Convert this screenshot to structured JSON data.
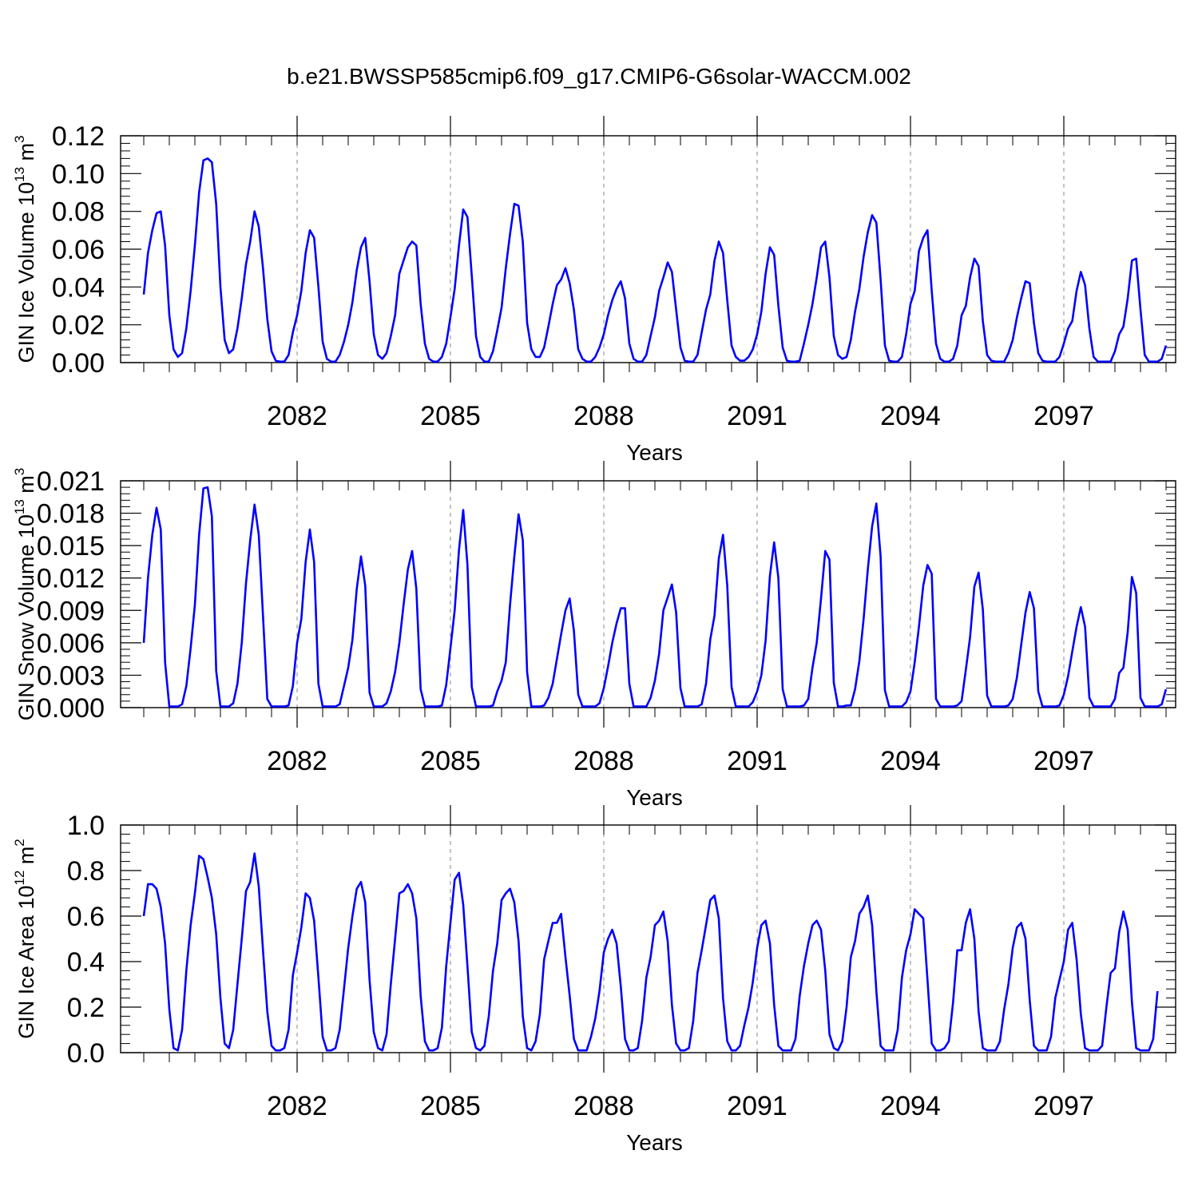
{
  "title": "b.e21.BWSSP585cmip6.f09_g17.CMIP6-G6solar-WACCM.002",
  "colors": {
    "series": "#0000ff",
    "axis": "#000000",
    "grid": "#888888"
  },
  "chart_data": [
    {
      "type": "line",
      "xlabel": "Years",
      "ylabel_main": "GIN Ice Volume 10",
      "ylabel_exp": "13",
      "ylabel_unit": " m",
      "ylabel_unit_exp": "3",
      "xlim": [
        2079.0,
        2099.0
      ],
      "ylim": [
        0.0,
        0.12
      ],
      "yticks": [
        0.0,
        0.02,
        0.04,
        0.06,
        0.08,
        0.1,
        0.12
      ],
      "ytick_labels": [
        "0.00",
        "0.02",
        "0.04",
        "0.06",
        "0.08",
        "0.10",
        "0.12"
      ],
      "xticks": [
        2082,
        2085,
        2088,
        2091,
        2094,
        2097
      ],
      "xtick_labels": [
        "2082",
        "2085",
        "2088",
        "2091",
        "2094",
        "2097"
      ],
      "series": [
        {
          "name": "GIN Ice Volume",
          "x_start": 2079.0,
          "x_step": 0.08333,
          "values": [
            0.036,
            0.058,
            0.07,
            0.079,
            0.08,
            0.062,
            0.025,
            0.007,
            0.003,
            0.005,
            0.018,
            0.038,
            0.062,
            0.09,
            0.107,
            0.108,
            0.106,
            0.084,
            0.04,
            0.012,
            0.005,
            0.007,
            0.018,
            0.034,
            0.052,
            0.064,
            0.08,
            0.072,
            0.05,
            0.023,
            0.006,
            0.001,
            0.0005,
            0.0005,
            0.004,
            0.016,
            0.025,
            0.038,
            0.058,
            0.07,
            0.066,
            0.04,
            0.011,
            0.002,
            0.0005,
            0.0005,
            0.004,
            0.011,
            0.02,
            0.032,
            0.049,
            0.061,
            0.066,
            0.043,
            0.015,
            0.004,
            0.002,
            0.005,
            0.014,
            0.025,
            0.047,
            0.054,
            0.061,
            0.064,
            0.062,
            0.031,
            0.01,
            0.002,
            0.0005,
            0.0005,
            0.003,
            0.01,
            0.024,
            0.039,
            0.062,
            0.081,
            0.077,
            0.046,
            0.014,
            0.003,
            0.0005,
            0.0005,
            0.006,
            0.017,
            0.029,
            0.05,
            0.068,
            0.084,
            0.083,
            0.064,
            0.021,
            0.007,
            0.003,
            0.003,
            0.008,
            0.019,
            0.031,
            0.041,
            0.044,
            0.05,
            0.042,
            0.028,
            0.007,
            0.002,
            0.0005,
            0.0005,
            0.003,
            0.008,
            0.015,
            0.025,
            0.033,
            0.039,
            0.043,
            0.034,
            0.01,
            0.002,
            0.0005,
            0.0005,
            0.004,
            0.014,
            0.024,
            0.038,
            0.045,
            0.053,
            0.048,
            0.028,
            0.008,
            0.001,
            0.0005,
            0.0005,
            0.004,
            0.016,
            0.028,
            0.036,
            0.054,
            0.064,
            0.058,
            0.033,
            0.009,
            0.003,
            0.001,
            0.001,
            0.003,
            0.007,
            0.015,
            0.027,
            0.047,
            0.061,
            0.057,
            0.03,
            0.008,
            0.001,
            0.0005,
            0.0005,
            0.001,
            0.01,
            0.02,
            0.031,
            0.045,
            0.061,
            0.064,
            0.045,
            0.014,
            0.004,
            0.002,
            0.003,
            0.012,
            0.027,
            0.039,
            0.056,
            0.069,
            0.078,
            0.074,
            0.044,
            0.009,
            0.001,
            0.0005,
            0.0005,
            0.003,
            0.015,
            0.031,
            0.038,
            0.059,
            0.066,
            0.07,
            0.038,
            0.01,
            0.002,
            0.0005,
            0.0005,
            0.002,
            0.009,
            0.025,
            0.03,
            0.045,
            0.055,
            0.051,
            0.022,
            0.004,
            0.001,
            0.0005,
            0.0005,
            0.0005,
            0.005,
            0.012,
            0.024,
            0.034,
            0.043,
            0.042,
            0.021,
            0.005,
            0.001,
            0.0005,
            0.0005,
            0.0005,
            0.003,
            0.01,
            0.018,
            0.022,
            0.038,
            0.048,
            0.041,
            0.018,
            0.003,
            0.0005,
            0.0005,
            0.0005,
            0.0005,
            0.006,
            0.015,
            0.019,
            0.034,
            0.054,
            0.055,
            0.028,
            0.004,
            0.0005,
            0.0005,
            0.0005,
            0.002,
            0.009
          ]
        }
      ]
    },
    {
      "type": "line",
      "xlabel": "Years",
      "ylabel_main": "GIN Snow Volume 10",
      "ylabel_exp": "13",
      "ylabel_unit": " m",
      "ylabel_unit_exp": "3",
      "xlim": [
        2079.0,
        2099.0
      ],
      "ylim": [
        0.0,
        0.021
      ],
      "yticks": [
        0.0,
        0.003,
        0.006,
        0.009,
        0.012,
        0.015,
        0.018,
        0.021
      ],
      "ytick_labels": [
        "0.000",
        "0.003",
        "0.006",
        "0.009",
        "0.012",
        "0.015",
        "0.018",
        "0.021"
      ],
      "xticks": [
        2082,
        2085,
        2088,
        2091,
        2094,
        2097
      ],
      "xtick_labels": [
        "2082",
        "2085",
        "2088",
        "2091",
        "2094",
        "2097"
      ],
      "series": [
        {
          "name": "GIN Snow Volume",
          "x_start": 2079.0,
          "x_step": 0.08333,
          "values": [
            0.006,
            0.012,
            0.016,
            0.0185,
            0.0165,
            0.0042,
            0.0001,
            0.0001,
            0.0001,
            0.0003,
            0.002,
            0.0055,
            0.0095,
            0.016,
            0.0203,
            0.0204,
            0.0177,
            0.0034,
            0.0001,
            0.0001,
            0.0001,
            0.0004,
            0.0022,
            0.006,
            0.0115,
            0.0155,
            0.0188,
            0.016,
            0.0085,
            0.0008,
            0.0001,
            0.0001,
            0.0001,
            0.0001,
            0.0002,
            0.002,
            0.006,
            0.0082,
            0.0135,
            0.0165,
            0.0135,
            0.0022,
            0.0001,
            0.0001,
            0.0001,
            0.0001,
            0.0003,
            0.002,
            0.0037,
            0.0063,
            0.011,
            0.014,
            0.0113,
            0.0014,
            0.0001,
            0.0001,
            0.0001,
            0.0004,
            0.0015,
            0.0033,
            0.006,
            0.0095,
            0.0128,
            0.0145,
            0.011,
            0.0017,
            0.0001,
            0.0001,
            0.0001,
            0.0001,
            0.0002,
            0.0021,
            0.0055,
            0.009,
            0.0146,
            0.0183,
            0.0132,
            0.0019,
            0.0001,
            0.0001,
            0.0001,
            0.0001,
            0.0002,
            0.0015,
            0.0025,
            0.0042,
            0.0095,
            0.014,
            0.0179,
            0.0155,
            0.0033,
            0.0001,
            0.0001,
            0.0001,
            0.0002,
            0.0009,
            0.0022,
            0.0045,
            0.0068,
            0.009,
            0.0101,
            0.0071,
            0.0012,
            0.0001,
            0.0001,
            0.0001,
            0.0001,
            0.0004,
            0.0018,
            0.0038,
            0.006,
            0.0078,
            0.0092,
            0.0092,
            0.0022,
            0.0001,
            0.0001,
            0.0001,
            0.0001,
            0.0009,
            0.0025,
            0.005,
            0.009,
            0.0102,
            0.0114,
            0.0088,
            0.0018,
            0.0001,
            0.0001,
            0.0001,
            0.0001,
            0.0003,
            0.0022,
            0.0063,
            0.0085,
            0.0138,
            0.016,
            0.0113,
            0.0019,
            0.0001,
            0.0001,
            0.0001,
            0.0001,
            0.0005,
            0.0015,
            0.003,
            0.0062,
            0.0122,
            0.0153,
            0.012,
            0.0017,
            0.0001,
            0.0001,
            0.0001,
            0.0001,
            0.0002,
            0.0008,
            0.0037,
            0.006,
            0.0101,
            0.0145,
            0.0137,
            0.0023,
            0.0001,
            0.0001,
            0.0002,
            0.0002,
            0.0017,
            0.0043,
            0.0082,
            0.0128,
            0.0168,
            0.0189,
            0.014,
            0.0016,
            0.0001,
            0.0001,
            0.0001,
            0.0001,
            0.0005,
            0.0015,
            0.0042,
            0.0075,
            0.0113,
            0.0132,
            0.0124,
            0.0008,
            0.0001,
            0.0001,
            0.0001,
            0.0001,
            0.0002,
            0.0006,
            0.0035,
            0.0065,
            0.0112,
            0.0125,
            0.0091,
            0.0011,
            0.0001,
            0.0001,
            0.0001,
            0.0001,
            0.0002,
            0.0008,
            0.0028,
            0.0058,
            0.0088,
            0.0107,
            0.0092,
            0.0015,
            0.0001,
            0.0001,
            0.0001,
            0.0001,
            0.0002,
            0.0012,
            0.0029,
            0.0052,
            0.0075,
            0.0093,
            0.0075,
            0.0009,
            0.0001,
            0.0001,
            0.0001,
            0.0001,
            0.0001,
            0.0008,
            0.0032,
            0.0037,
            0.007,
            0.0121,
            0.0106,
            0.0009,
            0.0001,
            0.0001,
            0.0001,
            0.0001,
            0.0003,
            0.0017
          ]
        }
      ]
    },
    {
      "type": "line",
      "xlabel": "Years",
      "ylabel_main": "GIN Ice Area 10",
      "ylabel_exp": "12",
      "ylabel_unit": " m",
      "ylabel_unit_exp": "2",
      "xlim": [
        2079.0,
        2099.0
      ],
      "ylim": [
        0.0,
        1.0
      ],
      "yticks": [
        0.0,
        0.2,
        0.4,
        0.6,
        0.8,
        1.0
      ],
      "ytick_labels": [
        "0.0",
        "0.2",
        "0.4",
        "0.6",
        "0.8",
        "1.0"
      ],
      "xticks": [
        2082,
        2085,
        2088,
        2091,
        2094,
        2097
      ],
      "xtick_labels": [
        "2082",
        "2085",
        "2088",
        "2091",
        "2094",
        "2097"
      ],
      "series": [
        {
          "name": "GIN Ice Area",
          "x_start": 2079.0,
          "x_step": 0.08333,
          "values": [
            0.6,
            0.74,
            0.74,
            0.72,
            0.64,
            0.48,
            0.19,
            0.02,
            0.01,
            0.1,
            0.36,
            0.56,
            0.7,
            0.865,
            0.85,
            0.77,
            0.68,
            0.52,
            0.24,
            0.04,
            0.02,
            0.1,
            0.3,
            0.5,
            0.71,
            0.75,
            0.875,
            0.73,
            0.45,
            0.18,
            0.03,
            0.01,
            0.01,
            0.02,
            0.1,
            0.34,
            0.44,
            0.55,
            0.7,
            0.68,
            0.58,
            0.33,
            0.07,
            0.01,
            0.01,
            0.02,
            0.1,
            0.28,
            0.46,
            0.6,
            0.72,
            0.75,
            0.66,
            0.32,
            0.09,
            0.02,
            0.01,
            0.08,
            0.3,
            0.5,
            0.7,
            0.71,
            0.74,
            0.7,
            0.59,
            0.25,
            0.05,
            0.01,
            0.01,
            0.02,
            0.11,
            0.38,
            0.57,
            0.76,
            0.79,
            0.65,
            0.38,
            0.09,
            0.02,
            0.01,
            0.03,
            0.16,
            0.36,
            0.48,
            0.67,
            0.7,
            0.72,
            0.66,
            0.49,
            0.16,
            0.02,
            0.01,
            0.05,
            0.17,
            0.41,
            0.49,
            0.57,
            0.57,
            0.61,
            0.42,
            0.25,
            0.06,
            0.01,
            0.01,
            0.01,
            0.07,
            0.15,
            0.27,
            0.44,
            0.5,
            0.54,
            0.48,
            0.29,
            0.06,
            0.01,
            0.01,
            0.02,
            0.14,
            0.33,
            0.42,
            0.56,
            0.58,
            0.62,
            0.49,
            0.21,
            0.04,
            0.01,
            0.01,
            0.02,
            0.14,
            0.35,
            0.45,
            0.56,
            0.67,
            0.69,
            0.59,
            0.24,
            0.05,
            0.01,
            0.01,
            0.03,
            0.12,
            0.2,
            0.31,
            0.46,
            0.56,
            0.58,
            0.48,
            0.21,
            0.03,
            0.01,
            0.01,
            0.01,
            0.06,
            0.25,
            0.38,
            0.48,
            0.56,
            0.58,
            0.54,
            0.36,
            0.08,
            0.02,
            0.01,
            0.05,
            0.2,
            0.42,
            0.49,
            0.61,
            0.64,
            0.69,
            0.56,
            0.27,
            0.03,
            0.01,
            0.01,
            0.01,
            0.1,
            0.33,
            0.45,
            0.52,
            0.63,
            0.61,
            0.59,
            0.32,
            0.04,
            0.01,
            0.01,
            0.02,
            0.05,
            0.22,
            0.45,
            0.45,
            0.57,
            0.63,
            0.5,
            0.18,
            0.02,
            0.01,
            0.01,
            0.01,
            0.05,
            0.19,
            0.3,
            0.46,
            0.55,
            0.57,
            0.5,
            0.23,
            0.03,
            0.01,
            0.01,
            0.01,
            0.07,
            0.24,
            0.32,
            0.4,
            0.54,
            0.57,
            0.41,
            0.17,
            0.02,
            0.01,
            0.01,
            0.01,
            0.03,
            0.2,
            0.35,
            0.37,
            0.53,
            0.62,
            0.54,
            0.22,
            0.02,
            0.01,
            0.01,
            0.01,
            0.06,
            0.27
          ]
        }
      ]
    }
  ]
}
